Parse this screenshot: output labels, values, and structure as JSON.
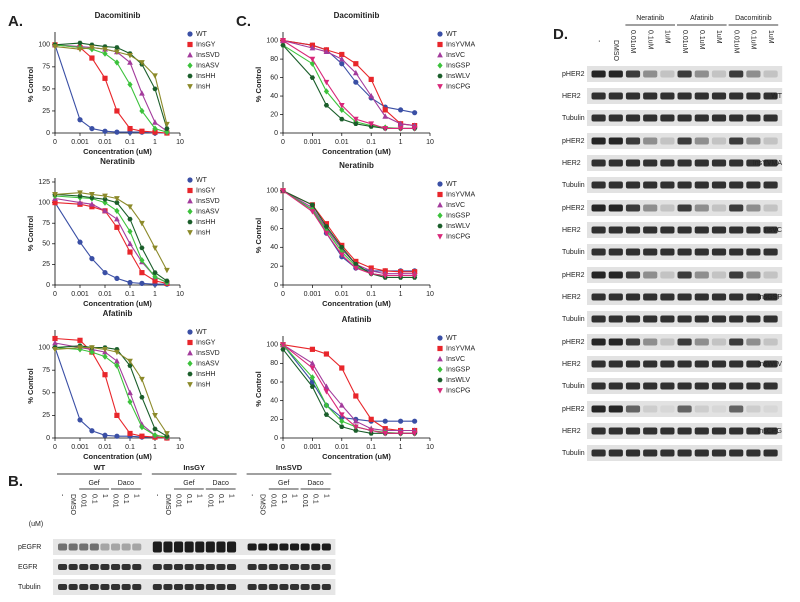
{
  "panel_labels": [
    "A.",
    "B.",
    "C.",
    "D."
  ],
  "chart_data": [
    {
      "type": "line",
      "title": "Dacomitinib",
      "xlabel": "Concentration (uM)",
      "ylabel": "% Control",
      "xscale": "log",
      "x": [
        0.0001,
        0.001,
        0.003,
        0.01,
        0.03,
        0.1,
        0.3,
        1,
        3
      ],
      "xlim": [
        0.0001,
        10
      ],
      "xticks": [
        {
          "value": 0.0001,
          "label": "0"
        },
        0.001,
        0.01,
        0.1,
        1,
        10
      ],
      "ylim": [
        0,
        110
      ],
      "yticks": [
        0,
        25,
        50,
        75,
        100
      ],
      "series": [
        {
          "name": "WT",
          "color": "#3a4fa5",
          "marker": "circle",
          "values": [
            100,
            15,
            5,
            2,
            1,
            1,
            1,
            0,
            0
          ]
        },
        {
          "name": "InsGY",
          "color": "#e8262b",
          "marker": "square",
          "values": [
            100,
            97,
            85,
            62,
            25,
            5,
            2,
            1,
            0
          ]
        },
        {
          "name": "InsSVD",
          "color": "#a33b9c",
          "marker": "triangle",
          "values": [
            100,
            98,
            97,
            95,
            92,
            80,
            45,
            12,
            2
          ]
        },
        {
          "name": "InsASV",
          "color": "#3cc23c",
          "marker": "diamond",
          "values": [
            100,
            97,
            95,
            90,
            80,
            55,
            25,
            5,
            1
          ]
        },
        {
          "name": "InsHH",
          "color": "#1a5e2a",
          "marker": "hexagon",
          "values": [
            100,
            102,
            100,
            98,
            97,
            90,
            78,
            50,
            5
          ]
        },
        {
          "name": "InsH",
          "color": "#8c8a2a",
          "marker": "triangle-down",
          "values": [
            98,
            95,
            97,
            95,
            92,
            88,
            80,
            65,
            10
          ]
        }
      ]
    },
    {
      "type": "line",
      "title": "Neratinib",
      "xlabel": "Concentration (uM)",
      "ylabel": "% Control",
      "xscale": "log",
      "x": [
        0.0001,
        0.001,
        0.003,
        0.01,
        0.03,
        0.1,
        0.3,
        1,
        3
      ],
      "xlim": [
        0.0001,
        10
      ],
      "xticks": [
        {
          "value": 0.0001,
          "label": "0"
        },
        0.001,
        0.01,
        0.1,
        1,
        10
      ],
      "ylim": [
        0,
        125
      ],
      "yticks": [
        0,
        25,
        50,
        75,
        100,
        125
      ],
      "series": [
        {
          "name": "WT",
          "color": "#3a4fa5",
          "marker": "circle",
          "values": [
            100,
            52,
            32,
            15,
            8,
            3,
            2,
            1,
            1
          ]
        },
        {
          "name": "InsGY",
          "color": "#e8262b",
          "marker": "square",
          "values": [
            100,
            98,
            95,
            90,
            70,
            40,
            15,
            5,
            2
          ]
        },
        {
          "name": "InsSVD",
          "color": "#a33b9c",
          "marker": "triangle",
          "values": [
            105,
            100,
            98,
            90,
            80,
            50,
            28,
            10,
            3
          ]
        },
        {
          "name": "InsASV",
          "color": "#3cc23c",
          "marker": "diamond",
          "values": [
            108,
            106,
            105,
            100,
            90,
            65,
            30,
            10,
            3
          ]
        },
        {
          "name": "InsHH",
          "color": "#1a5e2a",
          "marker": "hexagon",
          "values": [
            110,
            108,
            106,
            104,
            100,
            80,
            45,
            15,
            5
          ]
        },
        {
          "name": "InsH",
          "color": "#8c8a2a",
          "marker": "triangle-down",
          "values": [
            110,
            112,
            110,
            108,
            105,
            95,
            75,
            45,
            18
          ]
        }
      ]
    },
    {
      "type": "line",
      "title": "Afatinib",
      "xlabel": "Concentration (uM)",
      "ylabel": "% Control",
      "xscale": "log",
      "x": [
        0.0001,
        0.001,
        0.003,
        0.01,
        0.03,
        0.1,
        0.3,
        1,
        3
      ],
      "xlim": [
        0.0001,
        10
      ],
      "xticks": [
        {
          "value": 0.0001,
          "label": "0"
        },
        0.001,
        0.01,
        0.1,
        1,
        10
      ],
      "ylim": [
        0,
        115
      ],
      "yticks": [
        0,
        25,
        50,
        75,
        100
      ],
      "series": [
        {
          "name": "WT",
          "color": "#3a4fa5",
          "marker": "circle",
          "values": [
            100,
            20,
            8,
            3,
            2,
            2,
            1,
            1,
            0
          ]
        },
        {
          "name": "InsGY",
          "color": "#e8262b",
          "marker": "square",
          "values": [
            110,
            108,
            95,
            70,
            25,
            5,
            2,
            1,
            0
          ]
        },
        {
          "name": "InsSVD",
          "color": "#a33b9c",
          "marker": "triangle",
          "values": [
            105,
            100,
            98,
            95,
            85,
            50,
            15,
            3,
            1
          ]
        },
        {
          "name": "InsASV",
          "color": "#3cc23c",
          "marker": "diamond",
          "values": [
            100,
            98,
            95,
            90,
            80,
            40,
            12,
            3,
            1
          ]
        },
        {
          "name": "InsHH",
          "color": "#1a5e2a",
          "marker": "hexagon",
          "values": [
            100,
            102,
            100,
            100,
            98,
            80,
            45,
            10,
            2
          ]
        },
        {
          "name": "InsH",
          "color": "#8c8a2a",
          "marker": "triangle-down",
          "values": [
            98,
            100,
            100,
            98,
            95,
            85,
            65,
            25,
            5
          ]
        }
      ]
    },
    {
      "type": "line",
      "title": "Dacomitinib",
      "xlabel": "Concentration (uM)",
      "ylabel": "% Control",
      "xscale": "log",
      "x": [
        0.0001,
        0.001,
        0.003,
        0.01,
        0.03,
        0.1,
        0.3,
        1,
        3
      ],
      "xlim": [
        0.0001,
        10
      ],
      "xticks": [
        {
          "value": 0.0001,
          "label": "0"
        },
        0.001,
        0.01,
        0.1,
        1,
        10
      ],
      "ylim": [
        0,
        105
      ],
      "yticks": [
        0,
        20,
        40,
        60,
        80,
        100
      ],
      "series": [
        {
          "name": "WT",
          "color": "#3a4fa5",
          "marker": "circle",
          "values": [
            100,
            95,
            90,
            75,
            55,
            38,
            28,
            25,
            22
          ]
        },
        {
          "name": "InsYVMA",
          "color": "#e8262b",
          "marker": "square",
          "values": [
            100,
            95,
            90,
            85,
            75,
            58,
            25,
            10,
            8
          ]
        },
        {
          "name": "InsVC",
          "color": "#a33b9c",
          "marker": "triangle",
          "values": [
            100,
            92,
            88,
            80,
            65,
            40,
            18,
            10,
            8
          ]
        },
        {
          "name": "InsGSP",
          "color": "#3cc23c",
          "marker": "diamond",
          "values": [
            95,
            75,
            45,
            25,
            12,
            8,
            6,
            5,
            5
          ]
        },
        {
          "name": "InsWLV",
          "color": "#1a5e2a",
          "marker": "hexagon",
          "values": [
            95,
            60,
            30,
            15,
            10,
            7,
            5,
            5,
            5
          ]
        },
        {
          "name": "InsCPG",
          "color": "#d8287a",
          "marker": "triangle-down",
          "values": [
            100,
            80,
            55,
            30,
            15,
            10,
            5,
            5,
            5
          ]
        }
      ]
    },
    {
      "type": "line",
      "title": "Neratinib",
      "xlabel": "Concentration (uM)",
      "ylabel": "% Control",
      "xscale": "log",
      "x": [
        0.0001,
        0.001,
        0.003,
        0.01,
        0.03,
        0.1,
        0.3,
        1,
        3
      ],
      "xlim": [
        0.0001,
        10
      ],
      "xticks": [
        {
          "value": 0.0001,
          "label": "0"
        },
        0.001,
        0.01,
        0.1,
        1,
        10
      ],
      "ylim": [
        0,
        105
      ],
      "yticks": [
        0,
        20,
        40,
        60,
        80,
        100
      ],
      "series": [
        {
          "name": "WT",
          "color": "#3a4fa5",
          "marker": "circle",
          "values": [
            100,
            80,
            55,
            30,
            18,
            15,
            15,
            15,
            15
          ]
        },
        {
          "name": "InsYVMA",
          "color": "#e8262b",
          "marker": "square",
          "values": [
            100,
            85,
            65,
            42,
            25,
            18,
            15,
            14,
            14
          ]
        },
        {
          "name": "InsVC",
          "color": "#a33b9c",
          "marker": "triangle",
          "values": [
            100,
            82,
            60,
            38,
            22,
            15,
            12,
            12,
            12
          ]
        },
        {
          "name": "InsGSP",
          "color": "#3cc23c",
          "marker": "diamond",
          "values": [
            100,
            80,
            58,
            35,
            20,
            12,
            10,
            10,
            10
          ]
        },
        {
          "name": "InsWLV",
          "color": "#1a5e2a",
          "marker": "hexagon",
          "values": [
            100,
            85,
            62,
            40,
            22,
            12,
            8,
            8,
            8
          ]
        },
        {
          "name": "InsCPG",
          "color": "#d8287a",
          "marker": "triangle-down",
          "values": [
            100,
            78,
            55,
            32,
            18,
            12,
            10,
            10,
            10
          ]
        }
      ]
    },
    {
      "type": "line",
      "title": "Afatinib",
      "xlabel": "Concentration (uM)",
      "ylabel": "% Control",
      "xscale": "log",
      "x": [
        0.0001,
        0.001,
        0.003,
        0.01,
        0.03,
        0.1,
        0.3,
        1,
        3
      ],
      "xlim": [
        0.0001,
        10
      ],
      "xticks": [
        {
          "value": 0.0001,
          "label": "0"
        },
        0.001,
        0.01,
        0.1,
        1,
        10
      ],
      "ylim": [
        0,
        105
      ],
      "yticks": [
        0,
        20,
        40,
        60,
        80,
        100
      ],
      "series": [
        {
          "name": "WT",
          "color": "#3a4fa5",
          "marker": "circle",
          "values": [
            100,
            60,
            35,
            22,
            20,
            18,
            18,
            18,
            18
          ]
        },
        {
          "name": "InsYVMA",
          "color": "#e8262b",
          "marker": "square",
          "values": [
            100,
            95,
            90,
            75,
            45,
            20,
            10,
            8,
            8
          ]
        },
        {
          "name": "InsVC",
          "color": "#a33b9c",
          "marker": "triangle",
          "values": [
            100,
            80,
            55,
            35,
            18,
            10,
            8,
            8,
            8
          ]
        },
        {
          "name": "InsGSP",
          "color": "#3cc23c",
          "marker": "diamond",
          "values": [
            100,
            65,
            35,
            18,
            12,
            8,
            6,
            5,
            5
          ]
        },
        {
          "name": "InsWLV",
          "color": "#1a5e2a",
          "marker": "hexagon",
          "values": [
            95,
            55,
            25,
            12,
            8,
            5,
            5,
            5,
            5
          ]
        },
        {
          "name": "InsCPG",
          "color": "#d8287a",
          "marker": "triangle-down",
          "values": [
            100,
            75,
            50,
            25,
            12,
            8,
            5,
            5,
            5
          ]
        }
      ]
    }
  ],
  "blot_b": {
    "groups": [
      "WT",
      "InsGY",
      "InsSVD"
    ],
    "drugs": [
      "Gef",
      "Daco"
    ],
    "unit": "(uM)",
    "lanes": [
      "-",
      "DMSO",
      "0.01",
      "0.1",
      "1",
      "0.01",
      "0.1",
      "1"
    ],
    "rows": [
      "pEGFR",
      "EGFR",
      "Tubulin"
    ]
  },
  "blot_d": {
    "drugs": [
      "Neratinib",
      "Afatinib",
      "Dacomitinib"
    ],
    "controls": [
      "-",
      "DMSO"
    ],
    "doses": [
      "0.01uM",
      "0.1uM",
      "1uM"
    ],
    "rows": [
      "pHER2",
      "HER2",
      "Tubulin"
    ],
    "lines": [
      "WT",
      "InsYVMA",
      "InsVC",
      "InsGSP",
      "InsWLV",
      "InsCPG"
    ]
  }
}
